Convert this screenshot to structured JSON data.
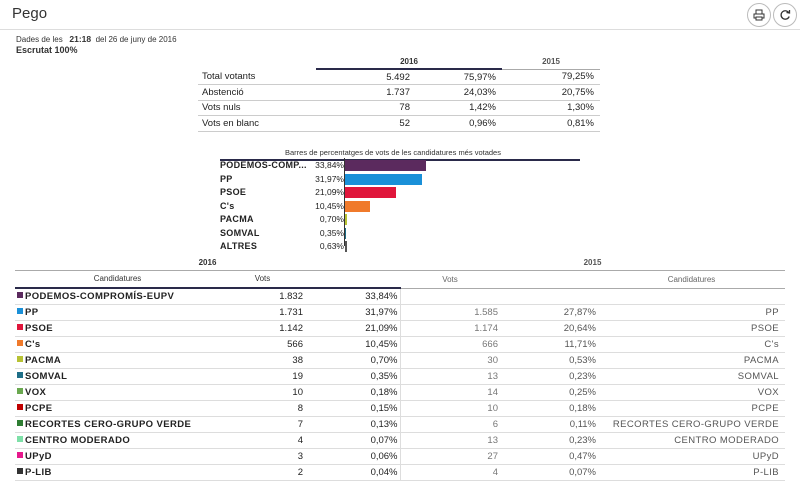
{
  "header": {
    "title": "Pego"
  },
  "meta": {
    "data_prefix": "Dades de les",
    "time": "21:18",
    "date": "del 26 de juny de 2016",
    "scrutiny": "Escrutat 100%"
  },
  "summary": {
    "col_2016": "2016",
    "col_2015": "2015",
    "rows": [
      {
        "label": "Total votants",
        "v16": "5.492",
        "p16": "75,97%",
        "p15": "79,25%"
      },
      {
        "label": "Abstenció",
        "v16": "1.737",
        "p16": "24,03%",
        "p15": "20,75%"
      },
      {
        "label": "Vots nuls",
        "v16": "78",
        "p16": "1,42%",
        "p15": "1,30%"
      },
      {
        "label": "Vots en blanc",
        "v16": "52",
        "p16": "0,96%",
        "p15": "0,81%"
      }
    ]
  },
  "chart_data": {
    "type": "bar",
    "title": "Barres de percentatges de vots de les candidatures més votades",
    "orientation": "horizontal",
    "categories": [
      "PODEMOS-COMP...",
      "PP",
      "PSOE",
      "C's",
      "PACMA",
      "SOMVAL",
      "ALTRES"
    ],
    "labels": [
      "33,84%",
      "31,97%",
      "21,09%",
      "10,45%",
      "0,70%",
      "0,35%",
      "0,63%"
    ],
    "values": [
      33.84,
      31.97,
      21.09,
      10.45,
      0.7,
      0.35,
      0.63
    ],
    "colors": [
      "#5b2a5e",
      "#1a90d8",
      "#e0163b",
      "#f07a2b",
      "#b7c234",
      "#1e6e87",
      "#555555"
    ],
    "xlim": [
      0,
      100
    ]
  },
  "results": {
    "year_2016": "2016",
    "year_2015": "2015",
    "col_candidatures": "Candidatures",
    "col_vots": "Vots",
    "rows": [
      {
        "party": "PODEMOS-COMPROMÍS-EUPV",
        "color": "#5b2a5e",
        "v16": "1.832",
        "p16": "33,84%",
        "v15": "",
        "p15": "",
        "n15": ""
      },
      {
        "party": "PP",
        "color": "#1a90d8",
        "v16": "1.731",
        "p16": "31,97%",
        "v15": "1.585",
        "p15": "27,87%",
        "n15": "PP"
      },
      {
        "party": "PSOE",
        "color": "#e0163b",
        "v16": "1.142",
        "p16": "21,09%",
        "v15": "1.174",
        "p15": "20,64%",
        "n15": "PSOE"
      },
      {
        "party": "C's",
        "color": "#f07a2b",
        "v16": "566",
        "p16": "10,45%",
        "v15": "666",
        "p15": "11,71%",
        "n15": "C's"
      },
      {
        "party": "PACMA",
        "color": "#b7c234",
        "v16": "38",
        "p16": "0,70%",
        "v15": "30",
        "p15": "0,53%",
        "n15": "PACMA"
      },
      {
        "party": "SOMVAL",
        "color": "#1e6e87",
        "v16": "19",
        "p16": "0,35%",
        "v15": "13",
        "p15": "0,23%",
        "n15": "SOMVAL"
      },
      {
        "party": "VOX",
        "color": "#6aa84f",
        "v16": "10",
        "p16": "0,18%",
        "v15": "14",
        "p15": "0,25%",
        "n15": "VOX"
      },
      {
        "party": "PCPE",
        "color": "#c00000",
        "v16": "8",
        "p16": "0,15%",
        "v15": "10",
        "p15": "0,18%",
        "n15": "PCPE"
      },
      {
        "party": "RECORTES CERO-GRUPO VERDE",
        "color": "#2e7d32",
        "v16": "7",
        "p16": "0,13%",
        "v15": "6",
        "p15": "0,11%",
        "n15": "RECORTES CERO-GRUPO VERDE"
      },
      {
        "party": "CENTRO MODERADO",
        "color": "#7ee0a8",
        "v16": "4",
        "p16": "0,07%",
        "v15": "13",
        "p15": "0,23%",
        "n15": "CENTRO MODERADO"
      },
      {
        "party": "UPyD",
        "color": "#e6188c",
        "v16": "3",
        "p16": "0,06%",
        "v15": "27",
        "p15": "0,47%",
        "n15": "UPyD"
      },
      {
        "party": "P-LIB",
        "color": "#333333",
        "v16": "2",
        "p16": "0,04%",
        "v15": "4",
        "p15": "0,07%",
        "n15": "P-LIB"
      }
    ]
  }
}
